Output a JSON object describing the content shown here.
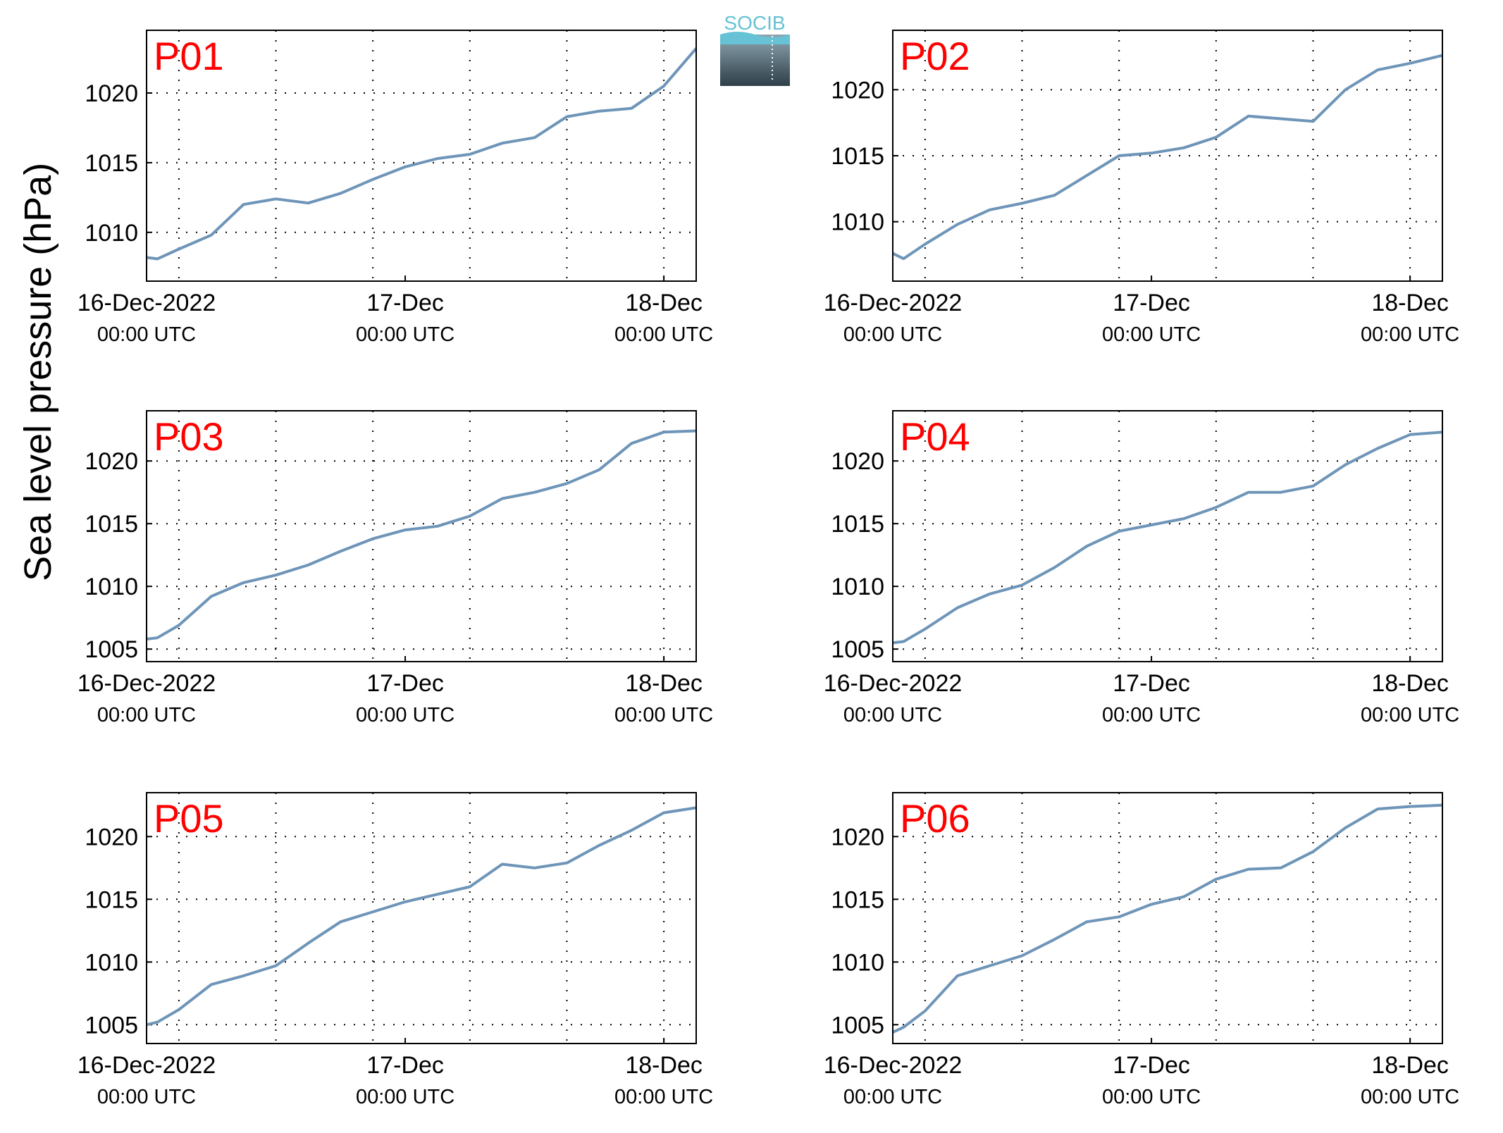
{
  "ylabel": "Sea level pressure (hPa)",
  "logo_text": "SOCIB",
  "colors": {
    "line": "#6e95b8",
    "panel_label": "#ff0000",
    "axis": "#000000",
    "grid": "#000000",
    "logo_top": "#66c2d4",
    "logo_bottom": "#2e3f48"
  },
  "x_ticks": [
    {
      "date": "16-Dec-2022",
      "time": "00:00 UTC"
    },
    {
      "date": "17-Dec",
      "time": "00:00 UTC"
    },
    {
      "date": "18-Dec",
      "time": "00:00 UTC"
    }
  ],
  "chart_data": [
    {
      "type": "line",
      "label": "P01",
      "xlim": [
        "2022-12-15T21:00",
        "2022-12-18T00:00"
      ],
      "ylim": [
        1006.5,
        1024.5
      ],
      "yticks": [
        1010,
        1015,
        1020
      ],
      "grid": true,
      "x": [
        "2022-12-15T21:00",
        "2022-12-15T22:00",
        "2022-12-16T00:00",
        "2022-12-16T03:00",
        "2022-12-16T06:00",
        "2022-12-16T09:00",
        "2022-12-16T12:00",
        "2022-12-16T15:00",
        "2022-12-16T18:00",
        "2022-12-16T21:00",
        "2022-12-17T00:00",
        "2022-12-17T03:00",
        "2022-12-17T06:00",
        "2022-12-17T09:00",
        "2022-12-17T12:00",
        "2022-12-17T15:00",
        "2022-12-17T18:00",
        "2022-12-17T21:00",
        "2022-12-18T00:00"
      ],
      "y": [
        1008.2,
        1008.1,
        1008.8,
        1009.8,
        1012.0,
        1012.4,
        1012.1,
        1012.8,
        1013.8,
        1014.7,
        1015.3,
        1015.6,
        1016.4,
        1016.8,
        1018.3,
        1018.7,
        1018.9,
        1020.5,
        1023.2
      ]
    },
    {
      "type": "line",
      "label": "P02",
      "xlim": [
        "2022-12-15T21:00",
        "2022-12-18T00:00"
      ],
      "ylim": [
        1005.5,
        1024.5
      ],
      "yticks": [
        1010,
        1015,
        1020
      ],
      "grid": true,
      "x": [
        "2022-12-15T21:00",
        "2022-12-15T22:00",
        "2022-12-16T00:00",
        "2022-12-16T03:00",
        "2022-12-16T06:00",
        "2022-12-16T09:00",
        "2022-12-16T12:00",
        "2022-12-16T15:00",
        "2022-12-16T18:00",
        "2022-12-16T21:00",
        "2022-12-17T00:00",
        "2022-12-17T03:00",
        "2022-12-17T06:00",
        "2022-12-17T09:00",
        "2022-12-17T12:00",
        "2022-12-17T15:00",
        "2022-12-17T18:00",
        "2022-12-17T21:00",
        "2022-12-18T00:00"
      ],
      "y": [
        1007.6,
        1007.2,
        1008.3,
        1009.8,
        1010.9,
        1011.4,
        1012.0,
        1013.5,
        1015.0,
        1015.2,
        1015.6,
        1016.4,
        1018.0,
        1017.8,
        1017.6,
        1020.0,
        1021.5,
        1022.0,
        1022.6
      ]
    },
    {
      "type": "line",
      "label": "P03",
      "xlim": [
        "2022-12-15T21:00",
        "2022-12-18T00:00"
      ],
      "ylim": [
        1004.0,
        1024.0
      ],
      "yticks": [
        1005,
        1010,
        1015,
        1020
      ],
      "grid": true,
      "x": [
        "2022-12-15T21:00",
        "2022-12-15T22:00",
        "2022-12-16T00:00",
        "2022-12-16T03:00",
        "2022-12-16T06:00",
        "2022-12-16T09:00",
        "2022-12-16T12:00",
        "2022-12-16T15:00",
        "2022-12-16T18:00",
        "2022-12-16T21:00",
        "2022-12-17T00:00",
        "2022-12-17T03:00",
        "2022-12-17T06:00",
        "2022-12-17T09:00",
        "2022-12-17T12:00",
        "2022-12-17T15:00",
        "2022-12-17T18:00",
        "2022-12-17T21:00",
        "2022-12-18T00:00"
      ],
      "y": [
        1005.8,
        1005.9,
        1006.9,
        1009.2,
        1010.3,
        1010.9,
        1011.7,
        1012.8,
        1013.8,
        1014.5,
        1014.8,
        1015.6,
        1017.0,
        1017.5,
        1018.2,
        1019.3,
        1021.4,
        1022.3,
        1022.4
      ]
    },
    {
      "type": "line",
      "label": "P04",
      "xlim": [
        "2022-12-15T21:00",
        "2022-12-18T00:00"
      ],
      "ylim": [
        1004.0,
        1024.0
      ],
      "yticks": [
        1005,
        1010,
        1015,
        1020
      ],
      "grid": true,
      "x": [
        "2022-12-15T21:00",
        "2022-12-15T22:00",
        "2022-12-16T00:00",
        "2022-12-16T03:00",
        "2022-12-16T06:00",
        "2022-12-16T09:00",
        "2022-12-16T12:00",
        "2022-12-16T15:00",
        "2022-12-16T18:00",
        "2022-12-16T21:00",
        "2022-12-17T00:00",
        "2022-12-17T03:00",
        "2022-12-17T06:00",
        "2022-12-17T09:00",
        "2022-12-17T12:00",
        "2022-12-17T15:00",
        "2022-12-17T18:00",
        "2022-12-17T21:00",
        "2022-12-18T00:00"
      ],
      "y": [
        1005.5,
        1005.6,
        1006.6,
        1008.3,
        1009.4,
        1010.1,
        1011.5,
        1013.2,
        1014.4,
        1014.9,
        1015.4,
        1016.3,
        1017.5,
        1017.5,
        1018.0,
        1019.7,
        1021.0,
        1022.1,
        1022.3
      ]
    },
    {
      "type": "line",
      "label": "P05",
      "xlim": [
        "2022-12-15T21:00",
        "2022-12-18T00:00"
      ],
      "ylim": [
        1003.5,
        1023.5
      ],
      "yticks": [
        1005,
        1010,
        1015,
        1020
      ],
      "grid": true,
      "x": [
        "2022-12-15T21:00",
        "2022-12-15T22:00",
        "2022-12-16T00:00",
        "2022-12-16T03:00",
        "2022-12-16T06:00",
        "2022-12-16T09:00",
        "2022-12-16T12:00",
        "2022-12-16T15:00",
        "2022-12-16T18:00",
        "2022-12-16T21:00",
        "2022-12-17T00:00",
        "2022-12-17T03:00",
        "2022-12-17T06:00",
        "2022-12-17T09:00",
        "2022-12-17T12:00",
        "2022-12-17T15:00",
        "2022-12-17T18:00",
        "2022-12-17T21:00",
        "2022-12-18T00:00"
      ],
      "y": [
        1005.0,
        1005.2,
        1006.2,
        1008.2,
        1008.9,
        1009.7,
        1011.5,
        1013.2,
        1014.0,
        1014.8,
        1015.4,
        1016.0,
        1017.8,
        1017.5,
        1017.9,
        1019.3,
        1020.5,
        1021.9,
        1022.3
      ]
    },
    {
      "type": "line",
      "label": "P06",
      "xlim": [
        "2022-12-15T21:00",
        "2022-12-18T00:00"
      ],
      "ylim": [
        1003.5,
        1023.5
      ],
      "yticks": [
        1005,
        1010,
        1015,
        1020
      ],
      "grid": true,
      "x": [
        "2022-12-15T21:00",
        "2022-12-15T22:00",
        "2022-12-16T00:00",
        "2022-12-16T03:00",
        "2022-12-16T06:00",
        "2022-12-16T09:00",
        "2022-12-16T12:00",
        "2022-12-16T15:00",
        "2022-12-16T18:00",
        "2022-12-16T21:00",
        "2022-12-17T00:00",
        "2022-12-17T03:00",
        "2022-12-17T06:00",
        "2022-12-17T09:00",
        "2022-12-17T12:00",
        "2022-12-17T15:00",
        "2022-12-17T18:00",
        "2022-12-17T21:00",
        "2022-12-18T00:00"
      ],
      "y": [
        1004.4,
        1004.8,
        1006.1,
        1008.9,
        1009.7,
        1010.5,
        1011.8,
        1013.2,
        1013.6,
        1014.6,
        1015.2,
        1016.6,
        1017.4,
        1017.5,
        1018.8,
        1020.7,
        1022.2,
        1022.4,
        1022.5
      ]
    }
  ]
}
